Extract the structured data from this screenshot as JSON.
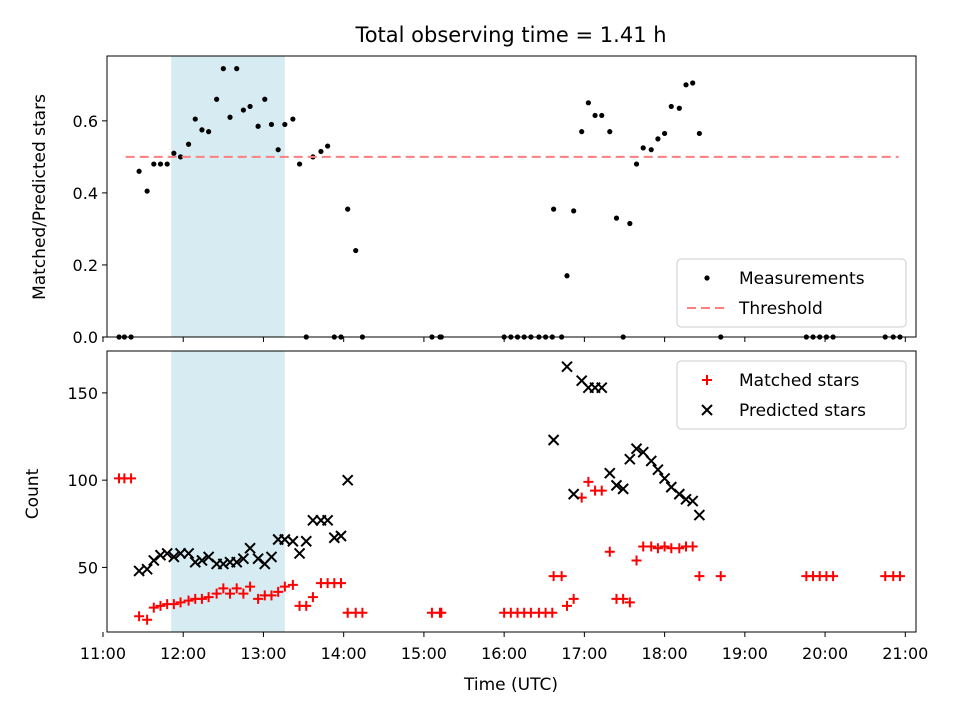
{
  "chart_data": [
    {
      "type": "scatter",
      "title": "Total observing time = 1.41 h",
      "xlabel": "",
      "ylabel": "Matched/Predicted stars",
      "xlim": [
        "11:03",
        "21:08"
      ],
      "ylim": [
        0,
        0.78
      ],
      "yticks": [
        0.0,
        0.2,
        0.4,
        0.6
      ],
      "ytick_labels": [
        "0.0",
        "0.2",
        "0.4",
        "0.6"
      ],
      "xticks_shown": false,
      "highlight_span": {
        "start": "11:51",
        "end": "13:16",
        "color": "#add8e6"
      },
      "legend": {
        "placement": "lower right",
        "entries": [
          "Measurements",
          "Threshold"
        ]
      },
      "series": [
        {
          "name": "Measurements",
          "marker": "dot",
          "color": "#000000",
          "points": [
            [
              "11:12",
              0
            ],
            [
              "11:16",
              0
            ],
            [
              "11:21",
              0
            ],
            [
              "11:27",
              0.46
            ],
            [
              "11:33",
              0.405
            ],
            [
              "11:38",
              0.48
            ],
            [
              "11:43",
              0.48
            ],
            [
              "11:48",
              0.48
            ],
            [
              "11:53",
              0.51
            ],
            [
              "11:58",
              0.5
            ],
            [
              "12:04",
              0.535
            ],
            [
              "12:09",
              0.605
            ],
            [
              "12:14",
              0.575
            ],
            [
              "12:19",
              0.57
            ],
            [
              "12:25",
              0.66
            ],
            [
              "12:30",
              0.745
            ],
            [
              "12:35",
              0.61
            ],
            [
              "12:40",
              0.745
            ],
            [
              "12:45",
              0.63
            ],
            [
              "12:50",
              0.64
            ],
            [
              "12:56",
              0.585
            ],
            [
              "13:01",
              0.66
            ],
            [
              "13:06",
              0.59
            ],
            [
              "13:11",
              0.52
            ],
            [
              "13:16",
              0.59
            ],
            [
              "13:22",
              0.605
            ],
            [
              "13:27",
              0.48
            ],
            [
              "13:32",
              0
            ],
            [
              "13:37",
              0.5
            ],
            [
              "13:43",
              0.515
            ],
            [
              "13:48",
              0.53
            ],
            [
              "13:53",
              0
            ],
            [
              "13:58",
              0
            ],
            [
              "14:03",
              0.355
            ],
            [
              "14:09",
              0.24
            ],
            [
              "14:14",
              0
            ],
            [
              "15:06",
              0
            ],
            [
              "15:12",
              0
            ],
            [
              "15:13",
              0
            ],
            [
              "16:00",
              0
            ],
            [
              "16:05",
              0
            ],
            [
              "16:10",
              0
            ],
            [
              "16:15",
              0
            ],
            [
              "16:20",
              0
            ],
            [
              "16:26",
              0
            ],
            [
              "16:31",
              0
            ],
            [
              "16:36",
              0
            ],
            [
              "16:37",
              0.355
            ],
            [
              "16:43",
              0
            ],
            [
              "16:47",
              0.17
            ],
            [
              "16:52",
              0.35
            ],
            [
              "16:58",
              0.57
            ],
            [
              "17:03",
              0.65
            ],
            [
              "17:08",
              0.615
            ],
            [
              "17:13",
              0.615
            ],
            [
              "17:19",
              0.57
            ],
            [
              "17:24",
              0.33
            ],
            [
              "17:29",
              0
            ],
            [
              "17:34",
              0.315
            ],
            [
              "17:39",
              0.48
            ],
            [
              "17:44",
              0.525
            ],
            [
              "17:50",
              0.52
            ],
            [
              "17:55",
              0.55
            ],
            [
              "18:00",
              0.565
            ],
            [
              "18:05",
              0.64
            ],
            [
              "18:11",
              0.635
            ],
            [
              "18:16",
              0.7
            ],
            [
              "18:21",
              0.705
            ],
            [
              "18:26",
              0.565
            ],
            [
              "18:42",
              0
            ],
            [
              "19:46",
              0
            ],
            [
              "19:51",
              0
            ],
            [
              "19:56",
              0
            ],
            [
              "20:01",
              0
            ],
            [
              "20:06",
              0
            ],
            [
              "20:45",
              0
            ],
            [
              "20:51",
              0
            ],
            [
              "20:56",
              0
            ]
          ]
        },
        {
          "name": "Threshold",
          "style": "dashed",
          "color": "#ff7f7f",
          "points": [
            [
              "11:17",
              0.5
            ],
            [
              "20:55",
              0.5
            ]
          ]
        }
      ]
    },
    {
      "type": "scatter",
      "title": "",
      "xlabel": "Time (UTC)",
      "ylabel": "Count",
      "xlim": [
        "11:03",
        "21:08"
      ],
      "ylim": [
        13,
        174
      ],
      "yticks": [
        50,
        100,
        150
      ],
      "ytick_labels": [
        "50",
        "100",
        "150"
      ],
      "xticks": [
        "11:00",
        "12:00",
        "13:00",
        "14:00",
        "15:00",
        "16:00",
        "17:00",
        "18:00",
        "19:00",
        "20:00",
        "21:00"
      ],
      "xtick_labels": [
        "11:00",
        "12:00",
        "13:00",
        "14:00",
        "15:00",
        "16:00",
        "17:00",
        "18:00",
        "19:00",
        "20:00",
        "21:00"
      ],
      "highlight_span": {
        "start": "11:51",
        "end": "13:16",
        "color": "#add8e6"
      },
      "legend": {
        "placement": "upper right",
        "entries": [
          "Matched stars",
          "Predicted stars"
        ]
      },
      "series": [
        {
          "name": "Matched stars",
          "marker": "plus",
          "color": "#ff0000",
          "points": [
            [
              "11:12",
              101
            ],
            [
              "11:16",
              101
            ],
            [
              "11:21",
              101
            ],
            [
              "11:27",
              22
            ],
            [
              "11:33",
              20
            ],
            [
              "11:38",
              27
            ],
            [
              "11:43",
              28
            ],
            [
              "11:48",
              29
            ],
            [
              "11:53",
              29
            ],
            [
              "11:58",
              30
            ],
            [
              "12:04",
              31
            ],
            [
              "12:09",
              32
            ],
            [
              "12:14",
              32
            ],
            [
              "12:19",
              33
            ],
            [
              "12:25",
              35
            ],
            [
              "12:30",
              38
            ],
            [
              "12:35",
              35
            ],
            [
              "12:40",
              38
            ],
            [
              "12:45",
              35
            ],
            [
              "12:50",
              39
            ],
            [
              "12:56",
              32
            ],
            [
              "13:01",
              34
            ],
            [
              "13:06",
              34
            ],
            [
              "13:11",
              36
            ],
            [
              "13:16",
              39
            ],
            [
              "13:22",
              40
            ],
            [
              "13:27",
              28
            ],
            [
              "13:32",
              28
            ],
            [
              "13:37",
              33
            ],
            [
              "13:43",
              41
            ],
            [
              "13:48",
              41
            ],
            [
              "13:53",
              41
            ],
            [
              "13:58",
              41
            ],
            [
              "14:03",
              24
            ],
            [
              "14:09",
              24
            ],
            [
              "14:14",
              24
            ],
            [
              "15:06",
              24
            ],
            [
              "15:12",
              24
            ],
            [
              "15:13",
              24
            ],
            [
              "16:00",
              24
            ],
            [
              "16:05",
              24
            ],
            [
              "16:10",
              24
            ],
            [
              "16:15",
              24
            ],
            [
              "16:20",
              24
            ],
            [
              "16:26",
              24
            ],
            [
              "16:31",
              24
            ],
            [
              "16:36",
              24
            ],
            [
              "16:37",
              45
            ],
            [
              "16:43",
              45
            ],
            [
              "16:47",
              28
            ],
            [
              "16:52",
              32
            ],
            [
              "16:58",
              90
            ],
            [
              "17:03",
              99
            ],
            [
              "17:08",
              94
            ],
            [
              "17:13",
              94
            ],
            [
              "17:19",
              59
            ],
            [
              "17:24",
              32
            ],
            [
              "17:29",
              32
            ],
            [
              "17:34",
              30
            ],
            [
              "17:39",
              54
            ],
            [
              "17:44",
              62
            ],
            [
              "17:50",
              62
            ],
            [
              "17:55",
              61
            ],
            [
              "18:00",
              62
            ],
            [
              "18:05",
              61
            ],
            [
              "18:11",
              61
            ],
            [
              "18:16",
              62
            ],
            [
              "18:21",
              62
            ],
            [
              "18:26",
              45
            ],
            [
              "18:42",
              45
            ],
            [
              "19:46",
              45
            ],
            [
              "19:51",
              45
            ],
            [
              "19:56",
              45
            ],
            [
              "20:01",
              45
            ],
            [
              "20:06",
              45
            ],
            [
              "20:45",
              45
            ],
            [
              "20:51",
              45
            ],
            [
              "20:56",
              45
            ]
          ]
        },
        {
          "name": "Predicted stars",
          "marker": "x",
          "color": "#000000",
          "points": [
            [
              "11:27",
              48
            ],
            [
              "11:33",
              49
            ],
            [
              "11:38",
              54
            ],
            [
              "11:43",
              57
            ],
            [
              "11:48",
              58
            ],
            [
              "11:53",
              56
            ],
            [
              "11:58",
              58
            ],
            [
              "12:04",
              58
            ],
            [
              "12:09",
              53
            ],
            [
              "12:14",
              54
            ],
            [
              "12:19",
              56
            ],
            [
              "12:25",
              52
            ],
            [
              "12:30",
              52
            ],
            [
              "12:35",
              53
            ],
            [
              "12:40",
              53
            ],
            [
              "12:45",
              55
            ],
            [
              "12:50",
              61
            ],
            [
              "12:56",
              55
            ],
            [
              "13:01",
              52
            ],
            [
              "13:06",
              56
            ],
            [
              "13:11",
              66
            ],
            [
              "13:16",
              66
            ],
            [
              "13:22",
              65
            ],
            [
              "13:27",
              58
            ],
            [
              "13:32",
              65
            ],
            [
              "13:37",
              77
            ],
            [
              "13:43",
              77
            ],
            [
              "13:48",
              77
            ],
            [
              "13:53",
              67
            ],
            [
              "13:58",
              68
            ],
            [
              "14:03",
              100
            ],
            [
              "16:37",
              123
            ],
            [
              "16:47",
              165
            ],
            [
              "16:52",
              92
            ],
            [
              "16:58",
              157
            ],
            [
              "17:03",
              153
            ],
            [
              "17:08",
              153
            ],
            [
              "17:13",
              153
            ],
            [
              "17:19",
              104
            ],
            [
              "17:24",
              97
            ],
            [
              "17:29",
              95
            ],
            [
              "17:34",
              112
            ],
            [
              "17:39",
              118
            ],
            [
              "17:44",
              116
            ],
            [
              "17:50",
              111
            ],
            [
              "17:55",
              106
            ],
            [
              "18:00",
              101
            ],
            [
              "18:05",
              96
            ],
            [
              "18:11",
              92
            ],
            [
              "18:16",
              89
            ],
            [
              "18:21",
              88
            ],
            [
              "18:26",
              80
            ]
          ]
        }
      ]
    }
  ]
}
